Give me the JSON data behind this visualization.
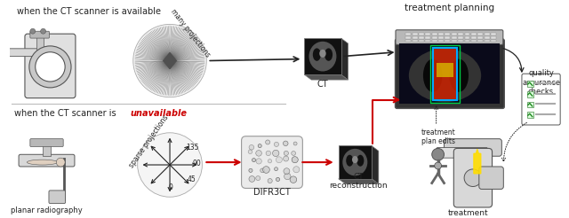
{
  "bg_color": "#ffffff",
  "top_label": "when the CT scanner is available",
  "bottom_label_prefix": "when the CT scanner is ",
  "bottom_label_word": "unavailable",
  "bottom_label_word_color": "#cc0000",
  "bottom_sub_label": "planar radiography",
  "top_right_label": "treatment planning",
  "arrow_color_black": "#222222",
  "arrow_color_red": "#cc0000",
  "ct_label": "CT",
  "difr3ct_label": "DIFR3CT",
  "ct_recon_label": "CT\nreconstruction",
  "treatment_label": "treatment",
  "treatment_plan_edits_label": "treatment\nplan edits",
  "quality_label": "quality\nassurance\nchecks",
  "many_proj_label": "many projections",
  "sparse_proj_label": "sparse projections",
  "angle_labels": [
    "0",
    "45",
    "90",
    "135"
  ]
}
